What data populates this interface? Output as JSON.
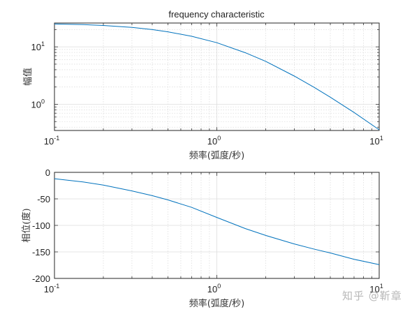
{
  "chart_data": [
    {
      "type": "line",
      "title": "frequency characteristic",
      "xlabel": "频率(弧度/秒)",
      "ylabel": "幅值",
      "xscale": "log",
      "yscale": "log",
      "xlim": [
        0.1,
        10
      ],
      "ylim": [
        0.35,
        26
      ],
      "xticks": [
        {
          "v": 0.1,
          "base": "10",
          "exp": "-1"
        },
        {
          "v": 1,
          "base": "10",
          "exp": "0"
        },
        {
          "v": 10,
          "base": "10",
          "exp": "1"
        }
      ],
      "yticks": [
        {
          "v": 1,
          "base": "10",
          "exp": "0"
        },
        {
          "v": 10,
          "base": "10",
          "exp": "1"
        }
      ],
      "grid": true,
      "series": [
        {
          "name": "magnitude",
          "color": "#0072bd",
          "x": [
            0.1,
            0.15,
            0.2,
            0.3,
            0.4,
            0.5,
            0.7,
            1.0,
            1.5,
            2.0,
            3.0,
            4.0,
            5.0,
            7.0,
            10.0
          ],
          "y": [
            25.0,
            24.4,
            23.6,
            21.8,
            20.0,
            18.3,
            15.3,
            11.8,
            7.9,
            5.6,
            3.1,
            1.95,
            1.33,
            0.72,
            0.36
          ]
        }
      ]
    },
    {
      "type": "line",
      "xlabel": "频率(弧度/秒)",
      "ylabel": "相位(度)",
      "xscale": "log",
      "xlim": [
        0.1,
        10
      ],
      "ylim": [
        -200,
        0
      ],
      "xticks": [
        {
          "v": 0.1,
          "base": "10",
          "exp": "-1"
        },
        {
          "v": 1,
          "base": "10",
          "exp": "0"
        },
        {
          "v": 10,
          "base": "10",
          "exp": "1"
        }
      ],
      "yticks": [
        0,
        -50,
        -100,
        -150,
        -200
      ],
      "grid": true,
      "series": [
        {
          "name": "phase",
          "color": "#0072bd",
          "x": [
            0.1,
            0.15,
            0.2,
            0.3,
            0.4,
            0.5,
            0.7,
            1.0,
            1.5,
            2.0,
            3.0,
            4.0,
            5.0,
            7.0,
            10.0
          ],
          "y": [
            -12,
            -18,
            -24,
            -35,
            -44,
            -52,
            -66,
            -85,
            -106,
            -119,
            -135,
            -145,
            -152,
            -164,
            -174
          ]
        }
      ]
    }
  ],
  "watermark": "知乎 @靳章"
}
